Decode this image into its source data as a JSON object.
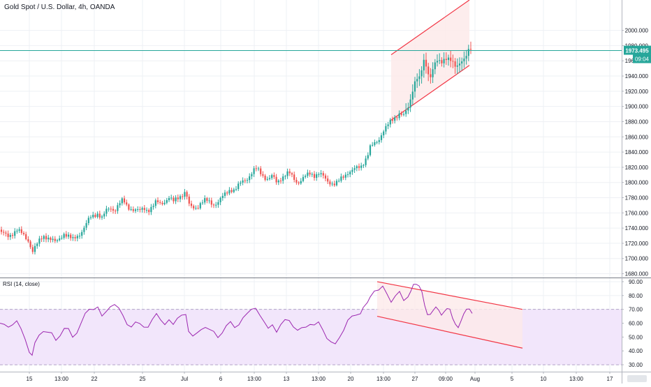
{
  "chart_data": [
    {
      "type": "candlestick",
      "title": "Gold Spot / U.S. Dollar, 4h, OANDA",
      "ylim": [
        1675,
        2040
      ],
      "yticks": [
        "1680.000",
        "1700.000",
        "1720.000",
        "1740.000",
        "1760.000",
        "1780.000",
        "1800.000",
        "1820.000",
        "1840.000",
        "1860.000",
        "1880.000",
        "1900.000",
        "1920.000",
        "1940.000",
        "1960.000",
        "1980.000",
        "2000.000"
      ],
      "grid": true,
      "last_price": "1973.495",
      "countdown": "09:04",
      "price_path": [
        [
          0,
          1738
        ],
        [
          6,
          1732
        ],
        [
          12,
          1727
        ],
        [
          18,
          1733
        ],
        [
          24,
          1740
        ],
        [
          30,
          1734
        ],
        [
          36,
          1726
        ],
        [
          42,
          1722
        ],
        [
          46,
          1710
        ],
        [
          50,
          1716
        ],
        [
          56,
          1722
        ],
        [
          62,
          1728
        ],
        [
          68,
          1729
        ],
        [
          74,
          1726
        ],
        [
          80,
          1720
        ],
        [
          86,
          1726
        ],
        [
          92,
          1734
        ],
        [
          98,
          1730
        ],
        [
          104,
          1724
        ],
        [
          110,
          1728
        ],
        [
          116,
          1735
        ],
        [
          122,
          1744
        ],
        [
          128,
          1752
        ],
        [
          134,
          1756
        ],
        [
          140,
          1760
        ],
        [
          146,
          1754
        ],
        [
          152,
          1762
        ],
        [
          158,
          1766
        ],
        [
          164,
          1764
        ],
        [
          170,
          1772
        ],
        [
          176,
          1776
        ],
        [
          182,
          1768
        ],
        [
          188,
          1766
        ],
        [
          194,
          1764
        ],
        [
          200,
          1762
        ],
        [
          206,
          1766
        ],
        [
          212,
          1764
        ],
        [
          218,
          1768
        ],
        [
          224,
          1774
        ],
        [
          230,
          1772
        ],
        [
          236,
          1776
        ],
        [
          242,
          1780
        ],
        [
          248,
          1774
        ],
        [
          254,
          1780
        ],
        [
          260,
          1784
        ],
        [
          266,
          1788
        ],
        [
          270,
          1770
        ],
        [
          276,
          1766
        ],
        [
          282,
          1768
        ],
        [
          288,
          1774
        ],
        [
          294,
          1776
        ],
        [
          300,
          1774
        ],
        [
          306,
          1772
        ],
        [
          312,
          1774
        ],
        [
          318,
          1780
        ],
        [
          324,
          1786
        ],
        [
          330,
          1792
        ],
        [
          336,
          1790
        ],
        [
          342,
          1796
        ],
        [
          348,
          1802
        ],
        [
          354,
          1806
        ],
        [
          360,
          1812
        ],
        [
          366,
          1818
        ],
        [
          372,
          1814
        ],
        [
          378,
          1808
        ],
        [
          384,
          1804
        ],
        [
          390,
          1808
        ],
        [
          396,
          1800
        ],
        [
          402,
          1806
        ],
        [
          408,
          1810
        ],
        [
          414,
          1812
        ],
        [
          420,
          1806
        ],
        [
          426,
          1800
        ],
        [
          432,
          1804
        ],
        [
          438,
          1808
        ],
        [
          444,
          1812
        ],
        [
          450,
          1810
        ],
        [
          456,
          1812
        ],
        [
          462,
          1808
        ],
        [
          468,
          1802
        ],
        [
          474,
          1800
        ],
        [
          480,
          1798
        ],
        [
          486,
          1802
        ],
        [
          492,
          1808
        ],
        [
          498,
          1814
        ],
        [
          504,
          1816
        ],
        [
          510,
          1818
        ],
        [
          516,
          1820
        ],
        [
          520,
          1826
        ],
        [
          526,
          1836
        ],
        [
          530,
          1846
        ],
        [
          536,
          1850
        ],
        [
          542,
          1856
        ],
        [
          548,
          1868
        ],
        [
          554,
          1874
        ],
        [
          560,
          1880
        ],
        [
          566,
          1886
        ],
        [
          572,
          1892
        ],
        [
          578,
          1888
        ],
        [
          584,
          1896
        ],
        [
          588,
          1910
        ],
        [
          592,
          1928
        ],
        [
          596,
          1940
        ],
        [
          600,
          1936
        ],
        [
          604,
          1948
        ],
        [
          608,
          1962
        ],
        [
          612,
          1944
        ],
        [
          616,
          1940
        ],
        [
          620,
          1952
        ],
        [
          624,
          1960
        ],
        [
          628,
          1958
        ],
        [
          632,
          1956
        ],
        [
          636,
          1962
        ],
        [
          640,
          1966
        ],
        [
          644,
          1964
        ],
        [
          648,
          1958
        ],
        [
          652,
          1950
        ],
        [
          656,
          1952
        ],
        [
          660,
          1960
        ],
        [
          664,
          1964
        ],
        [
          668,
          1970
        ],
        [
          672,
          1976
        ],
        [
          676,
          1973
        ]
      ],
      "trend_channel": {
        "upper": [
          [
            560,
            1968
          ],
          [
            672,
            2040
          ]
        ],
        "lower": [
          [
            560,
            1882
          ],
          [
            672,
            1954
          ]
        ]
      }
    },
    {
      "type": "line",
      "title": "RSI (14, close)",
      "ylim": [
        25,
        92
      ],
      "yticks": [
        "30.00",
        "40.00",
        "50.00",
        "60.00",
        "70.00",
        "80.00",
        "90.00"
      ],
      "band": [
        30,
        70
      ],
      "grid": true,
      "rsi_path": [
        [
          0,
          60
        ],
        [
          6,
          58
        ],
        [
          12,
          57
        ],
        [
          18,
          60
        ],
        [
          24,
          62
        ],
        [
          30,
          55
        ],
        [
          36,
          48
        ],
        [
          42,
          40
        ],
        [
          46,
          37
        ],
        [
          50,
          45
        ],
        [
          56,
          52
        ],
        [
          62,
          55
        ],
        [
          68,
          53
        ],
        [
          74,
          52
        ],
        [
          80,
          48
        ],
        [
          86,
          52
        ],
        [
          92,
          56
        ],
        [
          98,
          55
        ],
        [
          104,
          50
        ],
        [
          110,
          54
        ],
        [
          116,
          60
        ],
        [
          122,
          66
        ],
        [
          128,
          70
        ],
        [
          134,
          71
        ],
        [
          140,
          72
        ],
        [
          146,
          64
        ],
        [
          152,
          68
        ],
        [
          158,
          73
        ],
        [
          164,
          74
        ],
        [
          170,
          70
        ],
        [
          176,
          65
        ],
        [
          182,
          60
        ],
        [
          188,
          58
        ],
        [
          194,
          60
        ],
        [
          200,
          59
        ],
        [
          206,
          58
        ],
        [
          212,
          58
        ],
        [
          218,
          62
        ],
        [
          224,
          66
        ],
        [
          230,
          63
        ],
        [
          236,
          60
        ],
        [
          242,
          62
        ],
        [
          248,
          58
        ],
        [
          254,
          64
        ],
        [
          260,
          67
        ],
        [
          266,
          66
        ],
        [
          270,
          55
        ],
        [
          276,
          50
        ],
        [
          282,
          52
        ],
        [
          288,
          56
        ],
        [
          294,
          58
        ],
        [
          300,
          55
        ],
        [
          306,
          53
        ],
        [
          312,
          50
        ],
        [
          318,
          54
        ],
        [
          324,
          58
        ],
        [
          330,
          60
        ],
        [
          336,
          57
        ],
        [
          342,
          60
        ],
        [
          348,
          64
        ],
        [
          354,
          66
        ],
        [
          360,
          70
        ],
        [
          366,
          72
        ],
        [
          372,
          66
        ],
        [
          378,
          60
        ],
        [
          384,
          56
        ],
        [
          390,
          60
        ],
        [
          396,
          54
        ],
        [
          402,
          58
        ],
        [
          408,
          62
        ],
        [
          414,
          63
        ],
        [
          420,
          58
        ],
        [
          426,
          54
        ],
        [
          432,
          56
        ],
        [
          438,
          58
        ],
        [
          444,
          60
        ],
        [
          450,
          58
        ],
        [
          456,
          60
        ],
        [
          462,
          56
        ],
        [
          468,
          50
        ],
        [
          474,
          46
        ],
        [
          480,
          44
        ],
        [
          486,
          50
        ],
        [
          492,
          56
        ],
        [
          498,
          62
        ],
        [
          504,
          64
        ],
        [
          510,
          66
        ],
        [
          516,
          68
        ],
        [
          520,
          72
        ],
        [
          526,
          76
        ],
        [
          530,
          80
        ],
        [
          536,
          84
        ],
        [
          542,
          83
        ],
        [
          548,
          86
        ],
        [
          554,
          82
        ],
        [
          560,
          76
        ],
        [
          566,
          79
        ],
        [
          572,
          82
        ],
        [
          578,
          77
        ],
        [
          584,
          80
        ],
        [
          588,
          84
        ],
        [
          592,
          88
        ],
        [
          596,
          87
        ],
        [
          600,
          86
        ],
        [
          604,
          83
        ],
        [
          608,
          74
        ],
        [
          612,
          67
        ],
        [
          616,
          66
        ],
        [
          620,
          68
        ],
        [
          624,
          71
        ],
        [
          628,
          70
        ],
        [
          632,
          67
        ],
        [
          636,
          69
        ],
        [
          640,
          70
        ],
        [
          644,
          69
        ],
        [
          648,
          63
        ],
        [
          652,
          60
        ],
        [
          656,
          58
        ],
        [
          660,
          62
        ],
        [
          664,
          66
        ],
        [
          668,
          69
        ],
        [
          672,
          70
        ],
        [
          676,
          68
        ]
      ],
      "trend_channel": {
        "upper": [
          [
            540,
            90
          ],
          [
            748,
            70
          ]
        ],
        "lower": [
          [
            540,
            65
          ],
          [
            748,
            42
          ]
        ]
      }
    }
  ],
  "x_axis_labels": [
    {
      "label": "15",
      "x": 42
    },
    {
      "label": "13:00",
      "x": 88
    },
    {
      "label": "22",
      "x": 135
    },
    {
      "label": "25",
      "x": 204
    },
    {
      "label": "Jul",
      "x": 264
    },
    {
      "label": "6",
      "x": 316
    },
    {
      "label": "13:00",
      "x": 364
    },
    {
      "label": "13",
      "x": 410
    },
    {
      "label": "13:00",
      "x": 456
    },
    {
      "label": "20",
      "x": 502
    },
    {
      "label": "13:00",
      "x": 549
    },
    {
      "label": "27",
      "x": 594
    },
    {
      "label": "09:00",
      "x": 638
    },
    {
      "label": "Aug",
      "x": 680
    },
    {
      "label": "5",
      "x": 733
    },
    {
      "label": "10",
      "x": 778
    },
    {
      "label": "13:00",
      "x": 825
    },
    {
      "label": "17",
      "x": 873
    }
  ],
  "colors": {
    "up": "#26a69a",
    "down": "#ef5350",
    "rsi_line": "#9c27b0",
    "rsi_band": "#f2e6fb",
    "channel": "#f23645",
    "channel_fill": "#fdeaea",
    "price_line": "#26a69a",
    "grid": "#eef0f4",
    "axis_text": "#131722"
  }
}
